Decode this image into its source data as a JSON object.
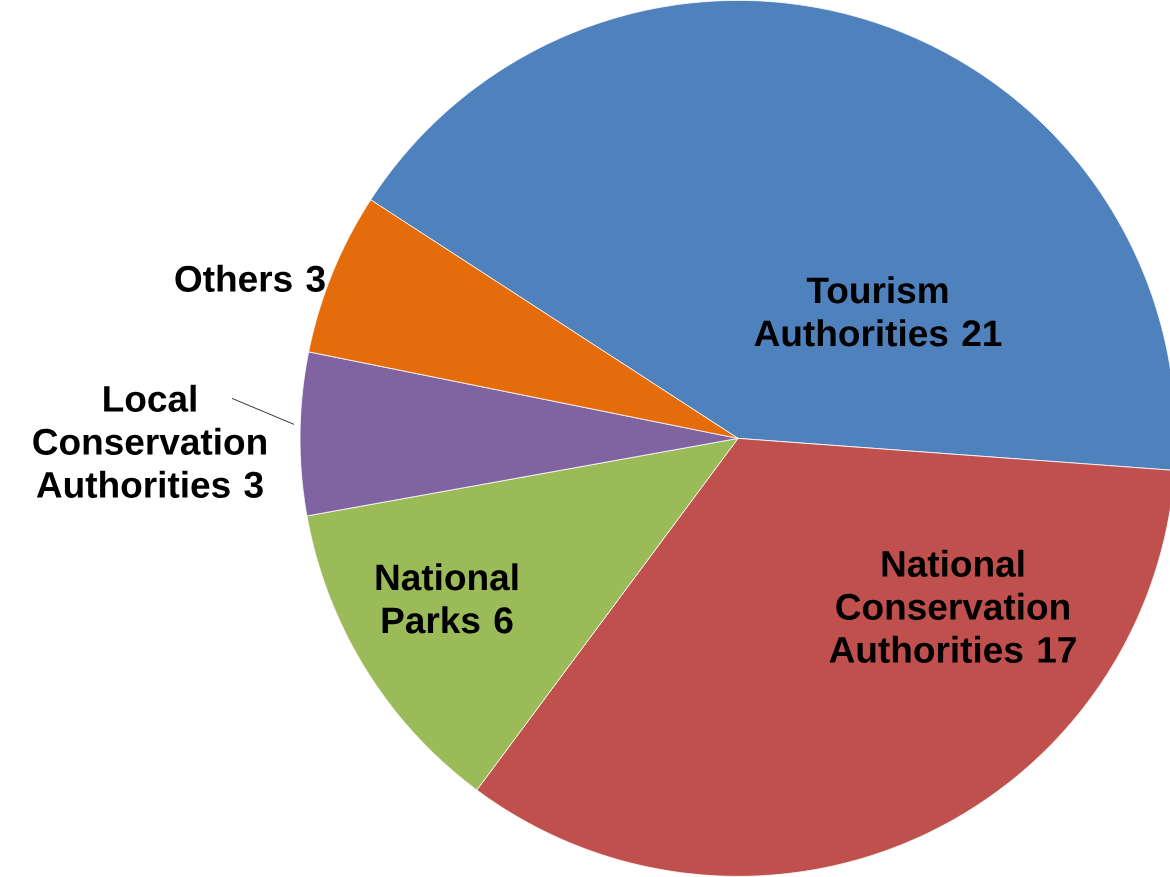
{
  "chart_data": {
    "type": "pie",
    "categories": [
      "Tourism Authorities",
      "National Conservation Authorities",
      "National Parks",
      "Local Conservation Authorities",
      "Others"
    ],
    "values": [
      21,
      17,
      6,
      3,
      3
    ],
    "colors": [
      "#4f81bd",
      "#c0504d",
      "#9bbb59",
      "#8064a2",
      "#e46c0a"
    ],
    "data_labels": true
  }
}
